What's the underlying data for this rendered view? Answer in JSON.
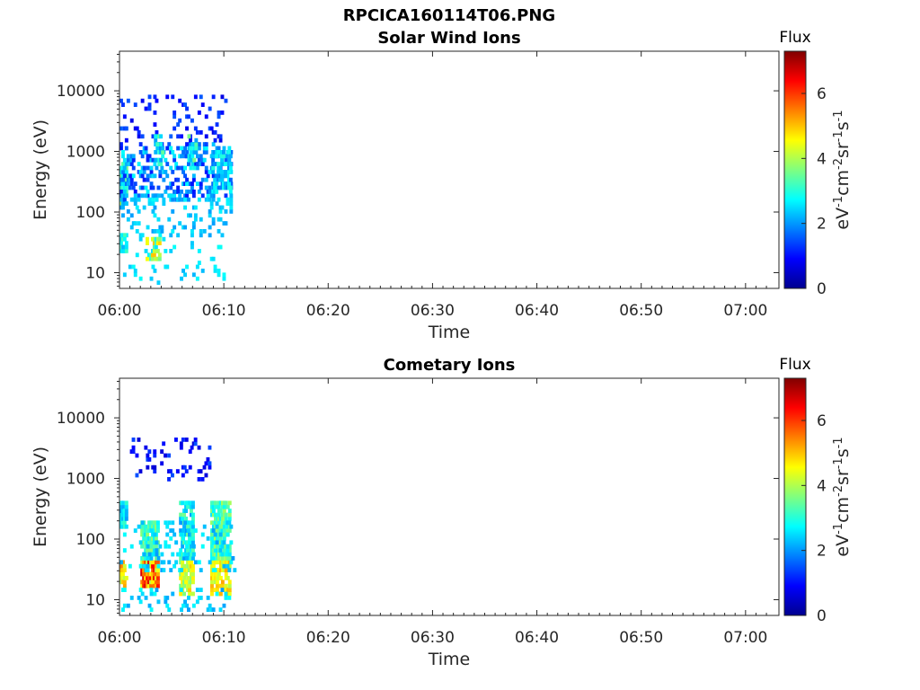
{
  "figure_title": "RPCICA160114T06.PNG",
  "colors": {
    "axis": "#262626",
    "low_flux": "#0000a0",
    "mid_flux": "#00c8ff",
    "high_flux": "#ff2000"
  },
  "chart_data": [
    {
      "type": "heatmap",
      "title": "Solar Wind Ions",
      "xlabel": "Time",
      "ylabel": "Energy (eV)",
      "x_ticks": [
        "06:00",
        "06:10",
        "06:20",
        "06:30",
        "06:40",
        "06:50",
        "07:00"
      ],
      "x_range_minutes": [
        0,
        63.2
      ],
      "y_scale": "log",
      "y_ticks": [
        10,
        100,
        1000,
        10000
      ],
      "y_tick_labels": [
        "10",
        "100",
        "1000",
        "10000"
      ],
      "y_range": [
        5.5,
        45000
      ],
      "colorbar": {
        "title": "Flux",
        "label": "eV-1cm-2sr-1s-1",
        "ticks": [
          0,
          2,
          4,
          6
        ],
        "range": [
          0,
          7.3
        ],
        "colormap": "jet"
      },
      "data_coverage_minutes": [
        0,
        10.6
      ],
      "clusters": [
        {
          "t": [
            0.0,
            0.6
          ],
          "e": [
            120,
            700
          ],
          "flux": [
            2.0,
            4.0
          ],
          "density": 0.9
        },
        {
          "t": [
            0.0,
            10.6
          ],
          "e": [
            150,
            1500
          ],
          "flux": [
            1.0,
            2.8
          ],
          "density": 0.3
        },
        {
          "t": [
            0.0,
            10.6
          ],
          "e": [
            1500,
            9000
          ],
          "flux": [
            0.7,
            1.6
          ],
          "density": 0.1
        },
        {
          "t": [
            3.3,
            4.0
          ],
          "e": [
            600,
            1900
          ],
          "flux": [
            2.0,
            3.6
          ],
          "density": 0.5
        },
        {
          "t": [
            6.5,
            7.2
          ],
          "e": [
            500,
            1800
          ],
          "flux": [
            2.0,
            3.6
          ],
          "density": 0.5
        },
        {
          "t": [
            8.8,
            10.6
          ],
          "e": [
            200,
            1100
          ],
          "flux": [
            1.6,
            3.0
          ],
          "density": 0.6
        },
        {
          "t": [
            0.0,
            10.6
          ],
          "e": [
            40,
            200
          ],
          "flux": [
            2.0,
            2.7
          ],
          "density": 0.12
        },
        {
          "t": [
            0.0,
            0.6
          ],
          "e": [
            20,
            45
          ],
          "flux": [
            2.5,
            3.3
          ],
          "density": 0.7
        },
        {
          "t": [
            2.5,
            3.8
          ],
          "e": [
            15,
            40
          ],
          "flux": [
            2.5,
            5.0
          ],
          "density": 0.6
        },
        {
          "t": [
            0.0,
            10.0
          ],
          "e": [
            6,
            40
          ],
          "flux": [
            2.2,
            2.8
          ],
          "density": 0.06
        }
      ]
    },
    {
      "type": "heatmap",
      "title": "Cometary Ions",
      "xlabel": "Time",
      "ylabel": "Energy (eV)",
      "x_ticks": [
        "06:00",
        "06:10",
        "06:20",
        "06:30",
        "06:40",
        "06:50",
        "07:00"
      ],
      "x_range_minutes": [
        0,
        63.2
      ],
      "y_scale": "log",
      "y_ticks": [
        10,
        100,
        1000,
        10000
      ],
      "y_tick_labels": [
        "10",
        "100",
        "1000",
        "10000"
      ],
      "y_range": [
        5.5,
        45000
      ],
      "colorbar": {
        "title": "Flux",
        "label": "eV-1cm-2sr-1s-1",
        "ticks": [
          0,
          2,
          4,
          6
        ],
        "range": [
          0,
          7.3
        ],
        "colormap": "jet"
      },
      "data_coverage_minutes": [
        0,
        10.6
      ],
      "clusters": [
        {
          "t": [
            0.0,
            0.6
          ],
          "e": [
            150,
            450
          ],
          "flux": [
            2.0,
            3.2
          ],
          "density": 0.8
        },
        {
          "t": [
            2.0,
            3.6
          ],
          "e": [
            15,
            45
          ],
          "flux": [
            4.0,
            6.8
          ],
          "density": 0.9
        },
        {
          "t": [
            2.0,
            3.6
          ],
          "e": [
            45,
            200
          ],
          "flux": [
            2.5,
            3.8
          ],
          "density": 0.7
        },
        {
          "t": [
            0.0,
            0.6
          ],
          "e": [
            15,
            45
          ],
          "flux": [
            4.0,
            5.5
          ],
          "density": 0.7
        },
        {
          "t": [
            5.7,
            6.9
          ],
          "e": [
            12,
            45
          ],
          "flux": [
            3.5,
            5.0
          ],
          "density": 0.7
        },
        {
          "t": [
            5.7,
            6.9
          ],
          "e": [
            45,
            400
          ],
          "flux": [
            2.0,
            3.6
          ],
          "density": 0.6
        },
        {
          "t": [
            8.7,
            10.4
          ],
          "e": [
            12,
            45
          ],
          "flux": [
            4.0,
            5.2
          ],
          "density": 0.6
        },
        {
          "t": [
            8.7,
            10.4
          ],
          "e": [
            45,
            400
          ],
          "flux": [
            2.5,
            4.0
          ],
          "density": 0.8
        },
        {
          "t": [
            0.0,
            11.0
          ],
          "e": [
            30,
            200
          ],
          "flux": [
            2.0,
            2.8
          ],
          "density": 0.12
        },
        {
          "t": [
            1.0,
            8.5
          ],
          "e": [
            900,
            5000
          ],
          "flux": [
            0.6,
            1.5
          ],
          "density": 0.12
        },
        {
          "t": [
            0.0,
            10.5
          ],
          "e": [
            6,
            15
          ],
          "flux": [
            2.0,
            2.8
          ],
          "density": 0.1
        }
      ]
    }
  ]
}
